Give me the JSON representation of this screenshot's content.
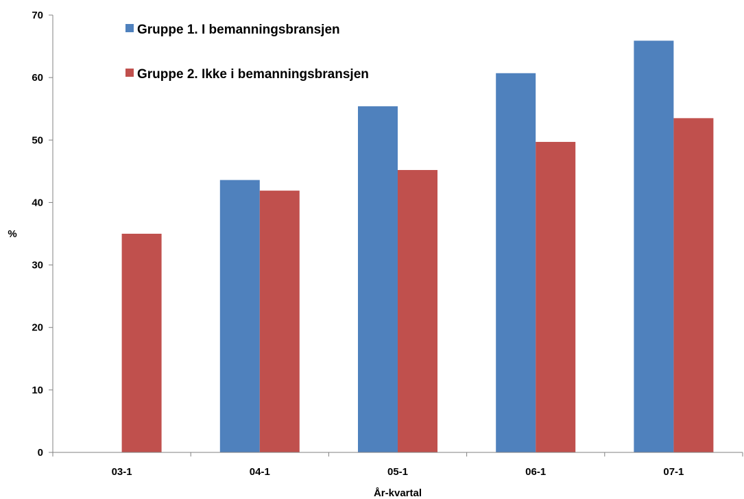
{
  "chart_data": {
    "type": "bar",
    "categories": [
      "03-1",
      "04-1",
      "05-1",
      "06-1",
      "07-1"
    ],
    "series": [
      {
        "name": "Gruppe 1. I bemanningsbransjen",
        "color": "#4F81BD",
        "values": [
          null,
          43.6,
          55.4,
          60.7,
          65.9
        ]
      },
      {
        "name": "Gruppe 2. Ikke i bemanningsbransjen",
        "color": "#C0504D",
        "values": [
          35.0,
          41.9,
          45.2,
          49.7,
          53.5
        ]
      }
    ],
    "xlabel": "År-kvartal",
    "ylabel": "%",
    "ylim": [
      0,
      70
    ],
    "yticks": [
      0,
      10,
      20,
      30,
      40,
      50,
      60,
      70
    ],
    "grid": false,
    "legend": "top-left"
  }
}
